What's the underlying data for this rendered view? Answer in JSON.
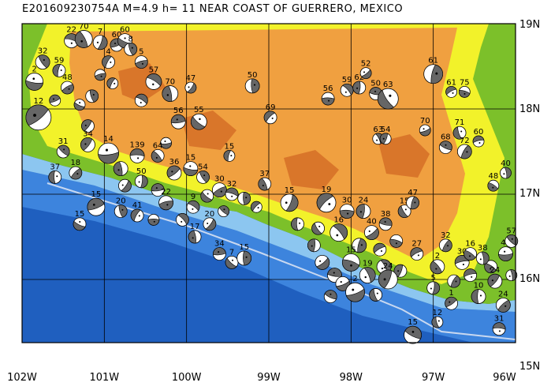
{
  "title": "E201609230754A  M=4.9  h= 11  NEAR COAST OF GUERRERO, MEXICO",
  "axes": {
    "lon_labels": [
      "102W",
      "101W",
      "100W",
      "99W",
      "98W",
      "97W",
      "96W"
    ],
    "lat_labels": [
      "19N",
      "18N",
      "17N",
      "16N",
      "15N"
    ]
  },
  "map_data": {
    "lon_range": [
      -102,
      -96
    ],
    "lat_range": [
      15,
      19
    ],
    "colors": {
      "deep_ocean": "#1f5fbf",
      "mid_ocean": "#3d84dd",
      "shelf": "#8cc6f0",
      "lowland": "#7cc02a",
      "hills": "#f2f22a",
      "highland": "#f0a040",
      "high_peaks": "#d9762a",
      "trench": "#c8d8f0"
    },
    "mechanisms": [
      {
        "lon": -101.8,
        "lat": 17.9,
        "depth": "12",
        "size": 16
      },
      {
        "lon": -101.85,
        "lat": 18.32,
        "depth": "2",
        "size": 11
      },
      {
        "lon": -101.75,
        "lat": 18.55,
        "depth": "32",
        "size": 9
      },
      {
        "lon": -101.55,
        "lat": 18.45,
        "depth": "59",
        "size": 8
      },
      {
        "lon": -101.45,
        "lat": 18.25,
        "depth": "48",
        "size": 8
      },
      {
        "lon": -101.4,
        "lat": 18.8,
        "depth": "22",
        "size": 9
      },
      {
        "lon": -101.25,
        "lat": 18.82,
        "depth": "70",
        "size": 11
      },
      {
        "lon": -101.05,
        "lat": 18.78,
        "depth": "7",
        "size": 9
      },
      {
        "lon": -100.85,
        "lat": 18.75,
        "depth": "60",
        "size": 8
      },
      {
        "lon": -100.75,
        "lat": 18.8,
        "depth": "60",
        "size": 9
      },
      {
        "lon": -100.68,
        "lat": 18.7,
        "depth": "8",
        "size": 8
      },
      {
        "lon": -100.95,
        "lat": 18.55,
        "depth": "4",
        "size": 8
      },
      {
        "lon": -100.55,
        "lat": 18.55,
        "depth": "5",
        "size": 8
      },
      {
        "lon": -100.4,
        "lat": 18.32,
        "depth": "57",
        "size": 10
      },
      {
        "lon": -100.2,
        "lat": 18.18,
        "depth": "70",
        "size": 10
      },
      {
        "lon": -99.95,
        "lat": 18.25,
        "depth": "47",
        "size": 7
      },
      {
        "lon": -100.1,
        "lat": 17.85,
        "depth": "56",
        "size": 9
      },
      {
        "lon": -99.85,
        "lat": 17.85,
        "depth": "55",
        "size": 10
      },
      {
        "lon": -99.2,
        "lat": 18.27,
        "depth": "50",
        "size": 9
      },
      {
        "lon": -98.98,
        "lat": 17.9,
        "depth": "69",
        "size": 8
      },
      {
        "lon": -98.28,
        "lat": 18.12,
        "depth": "56",
        "size": 8
      },
      {
        "lon": -98.05,
        "lat": 18.22,
        "depth": "59",
        "size": 8
      },
      {
        "lon": -97.9,
        "lat": 18.25,
        "depth": "62",
        "size": 8
      },
      {
        "lon": -97.82,
        "lat": 18.42,
        "depth": "52",
        "size": 7
      },
      {
        "lon": -97.7,
        "lat": 18.18,
        "depth": "50",
        "size": 8
      },
      {
        "lon": -97.55,
        "lat": 18.12,
        "depth": "63",
        "size": 13
      },
      {
        "lon": -97.0,
        "lat": 18.41,
        "depth": "61",
        "size": 12
      },
      {
        "lon": -96.78,
        "lat": 18.2,
        "depth": "61",
        "size": 7
      },
      {
        "lon": -96.62,
        "lat": 18.2,
        "depth": "75",
        "size": 7
      },
      {
        "lon": -97.67,
        "lat": 17.65,
        "depth": "63",
        "size": 7
      },
      {
        "lon": -97.58,
        "lat": 17.65,
        "depth": "54",
        "size": 7
      },
      {
        "lon": -97.1,
        "lat": 17.75,
        "depth": "70",
        "size": 7
      },
      {
        "lon": -96.85,
        "lat": 17.55,
        "depth": "68",
        "size": 8
      },
      {
        "lon": -96.68,
        "lat": 17.72,
        "depth": "71",
        "size": 8
      },
      {
        "lon": -96.62,
        "lat": 17.5,
        "depth": "72",
        "size": 9
      },
      {
        "lon": -96.45,
        "lat": 17.62,
        "depth": "60",
        "size": 7
      },
      {
        "lon": -96.27,
        "lat": 17.1,
        "depth": "48",
        "size": 7
      },
      {
        "lon": -96.12,
        "lat": 17.25,
        "depth": "40",
        "size": 7
      },
      {
        "lon": -101.2,
        "lat": 17.58,
        "depth": "34",
        "size": 9
      },
      {
        "lon": -100.95,
        "lat": 17.48,
        "depth": "14",
        "size": 13
      },
      {
        "lon": -101.5,
        "lat": 17.5,
        "depth": "31",
        "size": 8
      },
      {
        "lon": -101.6,
        "lat": 17.2,
        "depth": "37",
        "size": 8
      },
      {
        "lon": -101.35,
        "lat": 17.25,
        "depth": "18",
        "size": 8
      },
      {
        "lon": -100.6,
        "lat": 17.45,
        "depth": "139",
        "size": 9
      },
      {
        "lon": -100.35,
        "lat": 17.45,
        "depth": "64",
        "size": 8
      },
      {
        "lon": -100.55,
        "lat": 17.15,
        "depth": "50",
        "size": 8
      },
      {
        "lon": -100.15,
        "lat": 17.25,
        "depth": "36",
        "size": 9
      },
      {
        "lon": -99.95,
        "lat": 17.3,
        "depth": "15",
        "size": 9
      },
      {
        "lon": -99.8,
        "lat": 17.2,
        "depth": "54",
        "size": 8
      },
      {
        "lon": -99.48,
        "lat": 17.45,
        "depth": "15",
        "size": 7
      },
      {
        "lon": -99.6,
        "lat": 17.05,
        "depth": "30",
        "size": 9
      },
      {
        "lon": -99.45,
        "lat": 17.0,
        "depth": "32",
        "size": 8
      },
      {
        "lon": -99.05,
        "lat": 17.12,
        "depth": "37",
        "size": 8
      },
      {
        "lon": -98.75,
        "lat": 16.9,
        "depth": "15",
        "size": 11
      },
      {
        "lon": -101.1,
        "lat": 16.85,
        "depth": "15",
        "size": 11
      },
      {
        "lon": -101.3,
        "lat": 16.65,
        "depth": "15",
        "size": 8
      },
      {
        "lon": -100.8,
        "lat": 16.8,
        "depth": "20",
        "size": 8
      },
      {
        "lon": -100.6,
        "lat": 16.75,
        "depth": "41",
        "size": 8
      },
      {
        "lon": -100.25,
        "lat": 16.9,
        "depth": "22",
        "size": 9
      },
      {
        "lon": -99.92,
        "lat": 16.85,
        "depth": "9",
        "size": 8
      },
      {
        "lon": -99.9,
        "lat": 16.5,
        "depth": "17",
        "size": 8
      },
      {
        "lon": -99.72,
        "lat": 16.65,
        "depth": "20",
        "size": 8
      },
      {
        "lon": -99.6,
        "lat": 16.3,
        "depth": "34",
        "size": 8
      },
      {
        "lon": -99.45,
        "lat": 16.2,
        "depth": "7",
        "size": 8
      },
      {
        "lon": -99.3,
        "lat": 16.25,
        "depth": "15",
        "size": 9
      },
      {
        "lon": -98.3,
        "lat": 16.9,
        "depth": "19",
        "size": 12
      },
      {
        "lon": -98.05,
        "lat": 16.8,
        "depth": "30",
        "size": 9
      },
      {
        "lon": -98.15,
        "lat": 16.55,
        "depth": "16",
        "size": 11
      },
      {
        "lon": -97.85,
        "lat": 16.8,
        "depth": "24",
        "size": 9
      },
      {
        "lon": -97.75,
        "lat": 16.55,
        "depth": "40",
        "size": 9
      },
      {
        "lon": -97.58,
        "lat": 16.65,
        "depth": "38",
        "size": 8
      },
      {
        "lon": -97.35,
        "lat": 16.8,
        "depth": "15",
        "size": 8
      },
      {
        "lon": -97.25,
        "lat": 16.9,
        "depth": "47",
        "size": 8
      },
      {
        "lon": -97.2,
        "lat": 16.3,
        "depth": "27",
        "size": 8
      },
      {
        "lon": -98.0,
        "lat": 16.2,
        "depth": "15",
        "size": 11
      },
      {
        "lon": -97.8,
        "lat": 16.05,
        "depth": "19",
        "size": 10
      },
      {
        "lon": -97.55,
        "lat": 16.0,
        "depth": "24",
        "size": 12
      },
      {
        "lon": -97.95,
        "lat": 15.85,
        "depth": "2",
        "size": 12
      },
      {
        "lon": -97.25,
        "lat": 15.35,
        "depth": "15",
        "size": 11
      },
      {
        "lon": -96.95,
        "lat": 15.5,
        "depth": "12",
        "size": 7
      },
      {
        "lon": -96.85,
        "lat": 16.4,
        "depth": "32",
        "size": 8
      },
      {
        "lon": -96.65,
        "lat": 16.2,
        "depth": "30",
        "size": 9
      },
      {
        "lon": -96.55,
        "lat": 16.3,
        "depth": "16",
        "size": 8
      },
      {
        "lon": -96.4,
        "lat": 16.25,
        "depth": "38",
        "size": 8
      },
      {
        "lon": -96.25,
        "lat": 15.98,
        "depth": "24",
        "size": 9
      },
      {
        "lon": -96.12,
        "lat": 16.3,
        "depth": "45",
        "size": 9
      },
      {
        "lon": -96.05,
        "lat": 16.45,
        "depth": "57",
        "size": 8
      },
      {
        "lon": -96.45,
        "lat": 15.8,
        "depth": "10",
        "size": 9
      },
      {
        "lon": -96.15,
        "lat": 15.7,
        "depth": "24",
        "size": 9
      },
      {
        "lon": -96.2,
        "lat": 15.42,
        "depth": "31",
        "size": 8
      },
      {
        "lon": -96.95,
        "lat": 16.15,
        "depth": "2",
        "size": 9
      },
      {
        "lon": -97.0,
        "lat": 15.9,
        "depth": "5",
        "size": 8
      },
      {
        "lon": -96.78,
        "lat": 15.72,
        "depth": "1",
        "size": 8
      }
    ],
    "extra_beachballs": [
      {
        "lon": -101.6,
        "lat": 18.1,
        "size": 7
      },
      {
        "lon": -101.3,
        "lat": 18.05,
        "size": 7
      },
      {
        "lon": -101.15,
        "lat": 18.15,
        "size": 8
      },
      {
        "lon": -100.9,
        "lat": 18.3,
        "size": 7
      },
      {
        "lon": -101.05,
        "lat": 18.4,
        "size": 7
      },
      {
        "lon": -100.55,
        "lat": 18.1,
        "size": 8
      },
      {
        "lon": -100.8,
        "lat": 17.3,
        "size": 9
      },
      {
        "lon": -100.75,
        "lat": 17.1,
        "size": 8
      },
      {
        "lon": -100.35,
        "lat": 17.05,
        "size": 8
      },
      {
        "lon": -99.75,
        "lat": 16.98,
        "size": 8
      },
      {
        "lon": -99.3,
        "lat": 16.95,
        "size": 8
      },
      {
        "lon": -99.15,
        "lat": 16.85,
        "size": 7
      },
      {
        "lon": -100.4,
        "lat": 16.7,
        "size": 7
      },
      {
        "lon": -100.05,
        "lat": 16.7,
        "size": 8
      },
      {
        "lon": -98.45,
        "lat": 16.4,
        "size": 8
      },
      {
        "lon": -98.35,
        "lat": 16.2,
        "size": 9
      },
      {
        "lon": -98.2,
        "lat": 16.05,
        "size": 9
      },
      {
        "lon": -98.4,
        "lat": 16.6,
        "size": 8
      },
      {
        "lon": -97.9,
        "lat": 16.4,
        "size": 9
      },
      {
        "lon": -97.65,
        "lat": 16.35,
        "size": 8
      },
      {
        "lon": -97.45,
        "lat": 16.45,
        "size": 8
      },
      {
        "lon": -97.6,
        "lat": 16.15,
        "size": 9
      },
      {
        "lon": -97.4,
        "lat": 16.1,
        "size": 8
      },
      {
        "lon": -98.1,
        "lat": 15.95,
        "size": 9
      },
      {
        "lon": -98.25,
        "lat": 15.8,
        "size": 8
      },
      {
        "lon": -97.7,
        "lat": 15.82,
        "size": 8
      },
      {
        "lon": -96.75,
        "lat": 15.98,
        "size": 8
      },
      {
        "lon": -96.55,
        "lat": 16.05,
        "size": 8
      },
      {
        "lon": -96.3,
        "lat": 16.15,
        "size": 8
      },
      {
        "lon": -96.05,
        "lat": 16.05,
        "size": 7
      },
      {
        "lon": -101.2,
        "lat": 17.8,
        "size": 8
      },
      {
        "lon": -100.25,
        "lat": 17.6,
        "size": 7
      },
      {
        "lon": -99.55,
        "lat": 16.8,
        "size": 7
      },
      {
        "lon": -98.65,
        "lat": 16.65,
        "size": 8
      }
    ]
  }
}
